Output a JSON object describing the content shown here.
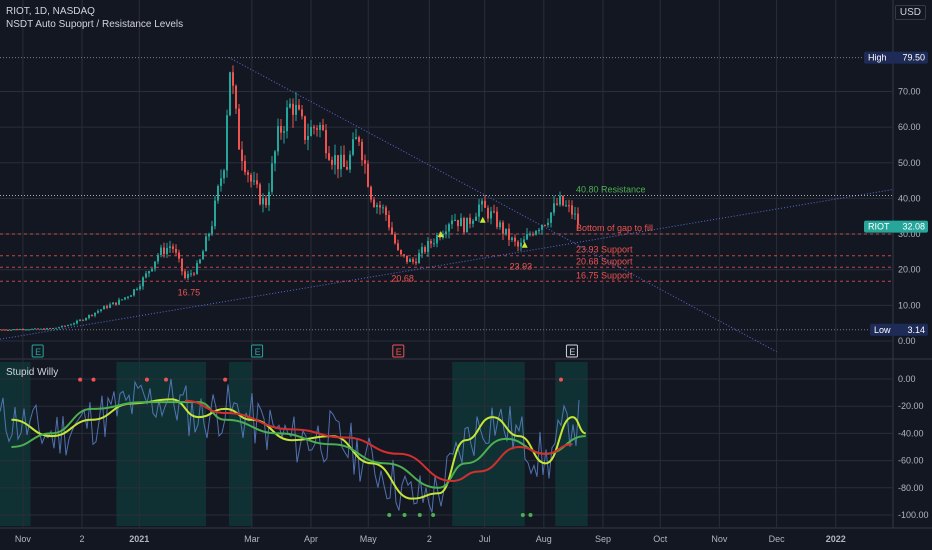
{
  "header": {
    "title": "RIOT, 1D, NASDAQ",
    "indicator": "NSDT Auto Supoprt / Resistance Levels",
    "currency": "USD"
  },
  "indicator_title": "Stupid Willy",
  "colors": {
    "background": "#131722",
    "grid": "#2a2e39",
    "up": "#26a69a",
    "down": "#ef5350",
    "resistance": "#4caf50",
    "support": "#ef5350",
    "trend": "#5b6bd8",
    "wave": "#5b82c8",
    "slow": "#d32f2f",
    "mid": "#4caf50",
    "fast": "#c6e635",
    "zone": "#0f3d3a"
  },
  "chart_data": [
    {
      "type": "candlestick",
      "title": "RIOT, 1D, NASDAQ",
      "ylim": [
        0,
        85
      ],
      "y_ticks": [
        0.0,
        10.0,
        20.0,
        30.0,
        40.0,
        50.0,
        60.0,
        70.0
      ],
      "x_ticks": [
        "Nov",
        "2",
        "2021",
        "Mar",
        "Apr",
        "May",
        "2",
        "Jul",
        "Aug",
        "Sep",
        "Oct",
        "Nov",
        "Dec",
        "2022"
      ],
      "price_markers": [
        {
          "label": "High",
          "value": 79.5
        },
        {
          "label": "RIOT",
          "value": 32.08
        },
        {
          "label": "Low",
          "value": 3.14
        }
      ],
      "level_lines": [
        {
          "label": "40.80 Resistance",
          "value": 40.8,
          "kind": "resistance"
        },
        {
          "label": "Bottom of gap to fill",
          "value": 30.0,
          "kind": "support"
        },
        {
          "label": "23.93 Support",
          "value": 23.93,
          "kind": "support"
        },
        {
          "label": "20.68 Support",
          "value": 20.68,
          "kind": "support"
        },
        {
          "label": "16.75 Support",
          "value": 16.75,
          "kind": "support"
        }
      ],
      "point_labels": [
        {
          "text": "16.75",
          "date": "2021-01-27",
          "value": 16.75
        },
        {
          "text": "20.68",
          "date": "2021-05-19",
          "value": 20.68
        },
        {
          "text": "23.93",
          "date": "2021-07-20",
          "value": 23.93
        }
      ],
      "earnings_markers": [
        "2020-11-09",
        "2021-03-04",
        "2021-05-17",
        "2021-08-16"
      ],
      "close_series": [
        [
          "2020-10-26",
          3.2
        ],
        [
          "2020-11-02",
          3.4
        ],
        [
          "2020-11-09",
          3.3
        ],
        [
          "2020-11-16",
          3.5
        ],
        [
          "2020-11-23",
          4.2
        ],
        [
          "2020-11-30",
          5.5
        ],
        [
          "2020-12-07",
          7.5
        ],
        [
          "2020-12-14",
          9.5
        ],
        [
          "2020-12-21",
          11.0
        ],
        [
          "2020-12-28",
          13.5
        ],
        [
          "2021-01-04",
          18.0
        ],
        [
          "2021-01-11",
          24.5
        ],
        [
          "2021-01-18",
          27.0
        ],
        [
          "2021-01-25",
          17.5
        ],
        [
          "2021-02-01",
          21.0
        ],
        [
          "2021-02-08",
          33.0
        ],
        [
          "2021-02-15",
          52.0
        ],
        [
          "2021-02-17",
          79.5
        ],
        [
          "2021-02-22",
          56.0
        ],
        [
          "2021-03-01",
          44.0
        ],
        [
          "2021-03-08",
          38.0
        ],
        [
          "2021-03-15",
          58.0
        ],
        [
          "2021-03-22",
          67.0
        ],
        [
          "2021-03-29",
          58.0
        ],
        [
          "2021-04-05",
          61.0
        ],
        [
          "2021-04-12",
          52.0
        ],
        [
          "2021-04-19",
          48.0
        ],
        [
          "2021-04-26",
          58.0
        ],
        [
          "2021-05-03",
          40.0
        ],
        [
          "2021-05-10",
          36.0
        ],
        [
          "2021-05-17",
          24.0
        ],
        [
          "2021-05-24",
          22.0
        ],
        [
          "2021-05-31",
          26.0
        ],
        [
          "2021-06-07",
          30.0
        ],
        [
          "2021-06-14",
          35.0
        ],
        [
          "2021-06-21",
          32.0
        ],
        [
          "2021-06-28",
          38.0
        ],
        [
          "2021-07-05",
          35.0
        ],
        [
          "2021-07-12",
          30.0
        ],
        [
          "2021-07-19",
          26.0
        ],
        [
          "2021-07-26",
          31.0
        ],
        [
          "2021-08-02",
          34.0
        ],
        [
          "2021-08-09",
          39.0
        ],
        [
          "2021-08-16",
          36.0
        ],
        [
          "2021-08-20",
          32.08
        ]
      ]
    },
    {
      "type": "line",
      "title": "Stupid Willy",
      "ylim": [
        -100,
        0
      ],
      "y_ticks": [
        0.0,
        -20.0,
        -40.0,
        -60.0,
        -80.0,
        -100.0
      ],
      "series": [
        {
          "key": "fast",
          "values": [
            [
              "2020-10-26",
              -30
            ],
            [
              "2020-11-16",
              -42
            ],
            [
              "2020-12-07",
              -30
            ],
            [
              "2020-12-28",
              -18
            ],
            [
              "2021-01-18",
              -15
            ],
            [
              "2021-02-01",
              -28
            ],
            [
              "2021-02-15",
              -22
            ],
            [
              "2021-03-01",
              -30
            ],
            [
              "2021-03-22",
              -45
            ],
            [
              "2021-04-12",
              -42
            ],
            [
              "2021-05-03",
              -62
            ],
            [
              "2021-05-24",
              -88
            ],
            [
              "2021-06-07",
              -84
            ],
            [
              "2021-06-21",
              -45
            ],
            [
              "2021-07-05",
              -28
            ],
            [
              "2021-07-19",
              -42
            ],
            [
              "2021-08-02",
              -62
            ],
            [
              "2021-08-16",
              -28
            ],
            [
              "2021-08-23",
              -40
            ]
          ]
        },
        {
          "key": "mid",
          "values": [
            [
              "2020-10-26",
              -50
            ],
            [
              "2020-11-16",
              -40
            ],
            [
              "2020-12-07",
              -22
            ],
            [
              "2021-01-04",
              -17
            ],
            [
              "2021-02-01",
              -17
            ],
            [
              "2021-02-15",
              -30
            ],
            [
              "2021-03-15",
              -40
            ],
            [
              "2021-04-12",
              -48
            ],
            [
              "2021-05-10",
              -62
            ],
            [
              "2021-06-07",
              -80
            ],
            [
              "2021-06-21",
              -62
            ],
            [
              "2021-07-12",
              -44
            ],
            [
              "2021-08-02",
              -55
            ],
            [
              "2021-08-23",
              -42
            ]
          ]
        },
        {
          "key": "slow",
          "values": [
            [
              "2021-01-25",
              -16
            ],
            [
              "2021-02-15",
              -25
            ],
            [
              "2021-03-22",
              -37
            ],
            [
              "2021-04-19",
              -43
            ],
            [
              "2021-05-17",
              -55
            ],
            [
              "2021-06-14",
              -75
            ],
            [
              "2021-06-28",
              -68
            ],
            [
              "2021-07-19",
              -50
            ],
            [
              "2021-08-02",
              -55
            ],
            [
              "2021-08-16",
              -48
            ]
          ]
        }
      ]
    }
  ]
}
